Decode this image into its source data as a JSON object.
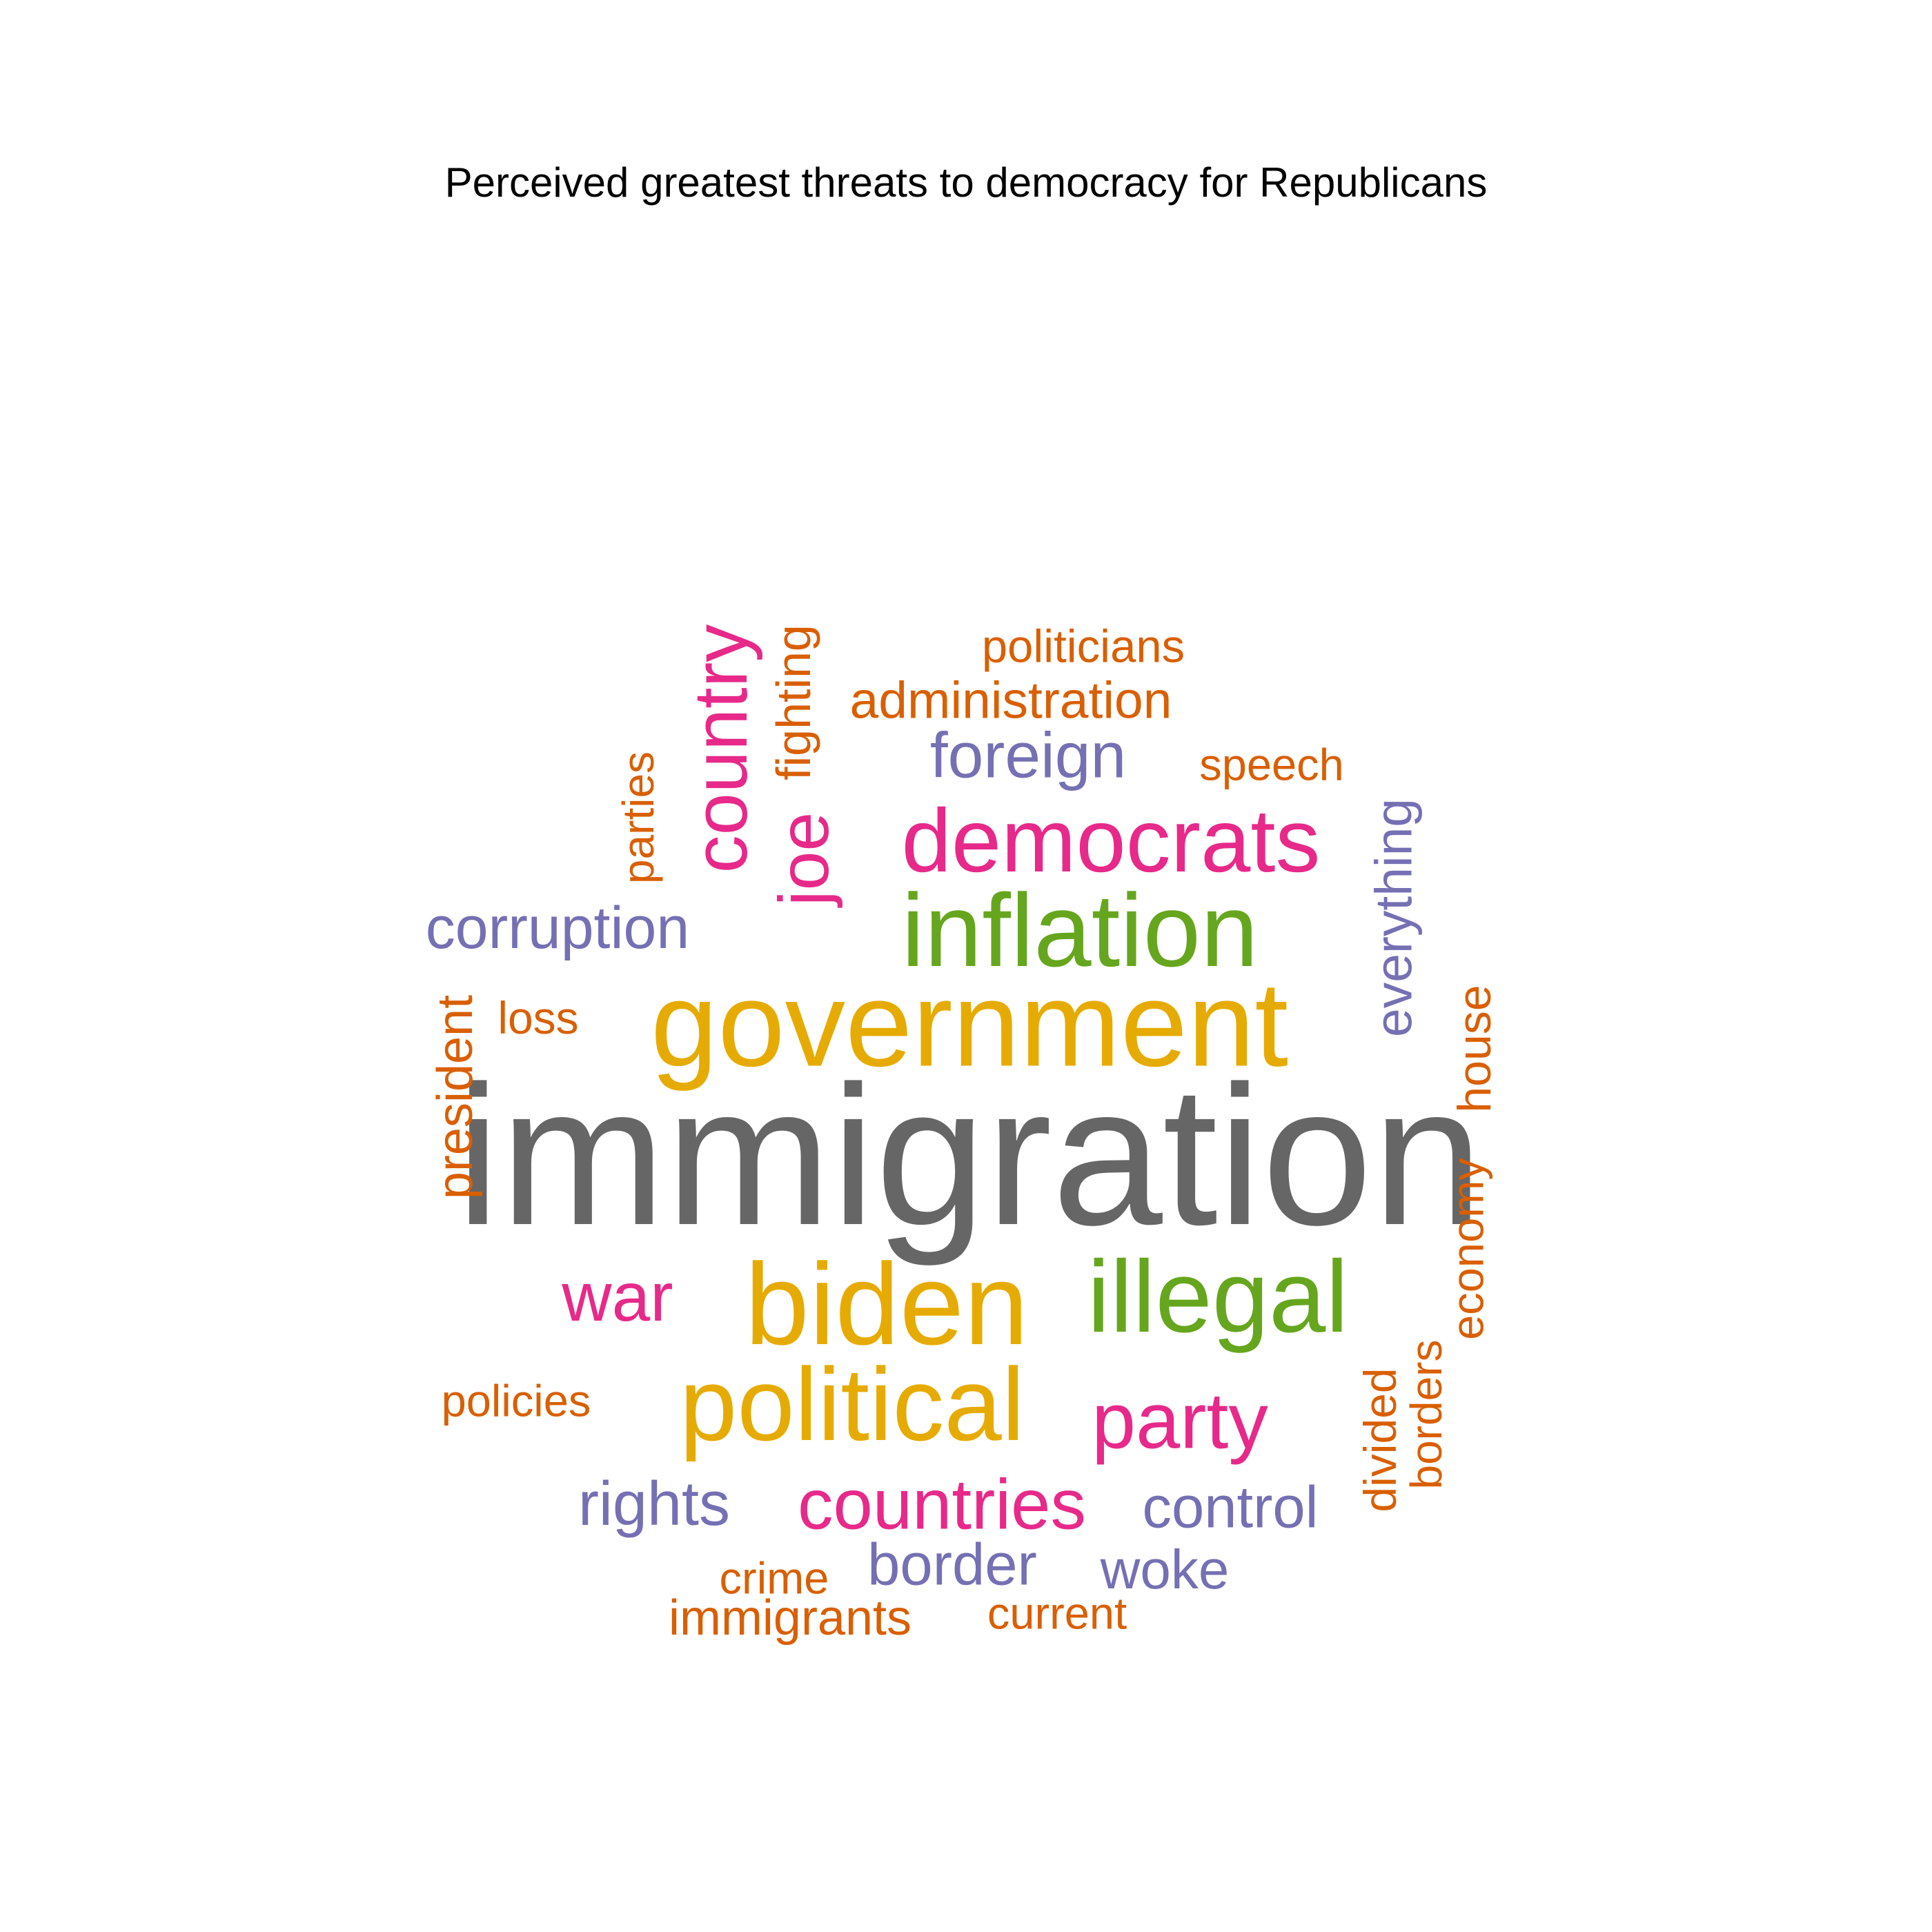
{
  "title": "Perceived greatest threats to democracy for Republicans",
  "palette": {
    "grey": "#666666",
    "gold": "#E6AB02",
    "green": "#66A61E",
    "pink": "#E7298A",
    "purple": "#7570B3",
    "orange": "#D95F02"
  },
  "words": [
    {
      "text": "immigration",
      "color": "grey",
      "rotated": false
    },
    {
      "text": "government",
      "color": "gold",
      "rotated": false
    },
    {
      "text": "biden",
      "color": "gold",
      "rotated": false
    },
    {
      "text": "political",
      "color": "gold",
      "rotated": false
    },
    {
      "text": "inflation",
      "color": "green",
      "rotated": false
    },
    {
      "text": "illegal",
      "color": "green",
      "rotated": false
    },
    {
      "text": "democrats",
      "color": "pink",
      "rotated": false
    },
    {
      "text": "party",
      "color": "pink",
      "rotated": false
    },
    {
      "text": "countries",
      "color": "pink",
      "rotated": false
    },
    {
      "text": "war",
      "color": "pink",
      "rotated": false
    },
    {
      "text": "country",
      "color": "pink",
      "rotated": true
    },
    {
      "text": "joe",
      "color": "pink",
      "rotated": true
    },
    {
      "text": "foreign",
      "color": "purple",
      "rotated": false
    },
    {
      "text": "corruption",
      "color": "purple",
      "rotated": false
    },
    {
      "text": "rights",
      "color": "purple",
      "rotated": false
    },
    {
      "text": "control",
      "color": "purple",
      "rotated": false
    },
    {
      "text": "border",
      "color": "purple",
      "rotated": false
    },
    {
      "text": "woke",
      "color": "purple",
      "rotated": false
    },
    {
      "text": "everything",
      "color": "purple",
      "rotated": true
    },
    {
      "text": "politicians",
      "color": "orange",
      "rotated": false
    },
    {
      "text": "administration",
      "color": "orange",
      "rotated": false
    },
    {
      "text": "speech",
      "color": "orange",
      "rotated": false
    },
    {
      "text": "loss",
      "color": "orange",
      "rotated": false
    },
    {
      "text": "policies",
      "color": "orange",
      "rotated": false
    },
    {
      "text": "crime",
      "color": "orange",
      "rotated": false
    },
    {
      "text": "immigrants",
      "color": "orange",
      "rotated": false
    },
    {
      "text": "current",
      "color": "orange",
      "rotated": false
    },
    {
      "text": "parties",
      "color": "orange",
      "rotated": true
    },
    {
      "text": "fighting",
      "color": "orange",
      "rotated": true
    },
    {
      "text": "president",
      "color": "orange",
      "rotated": true
    },
    {
      "text": "house",
      "color": "orange",
      "rotated": true
    },
    {
      "text": "economy",
      "color": "orange",
      "rotated": true
    },
    {
      "text": "divided",
      "color": "orange",
      "rotated": true
    },
    {
      "text": "borders",
      "color": "orange",
      "rotated": true
    }
  ]
}
